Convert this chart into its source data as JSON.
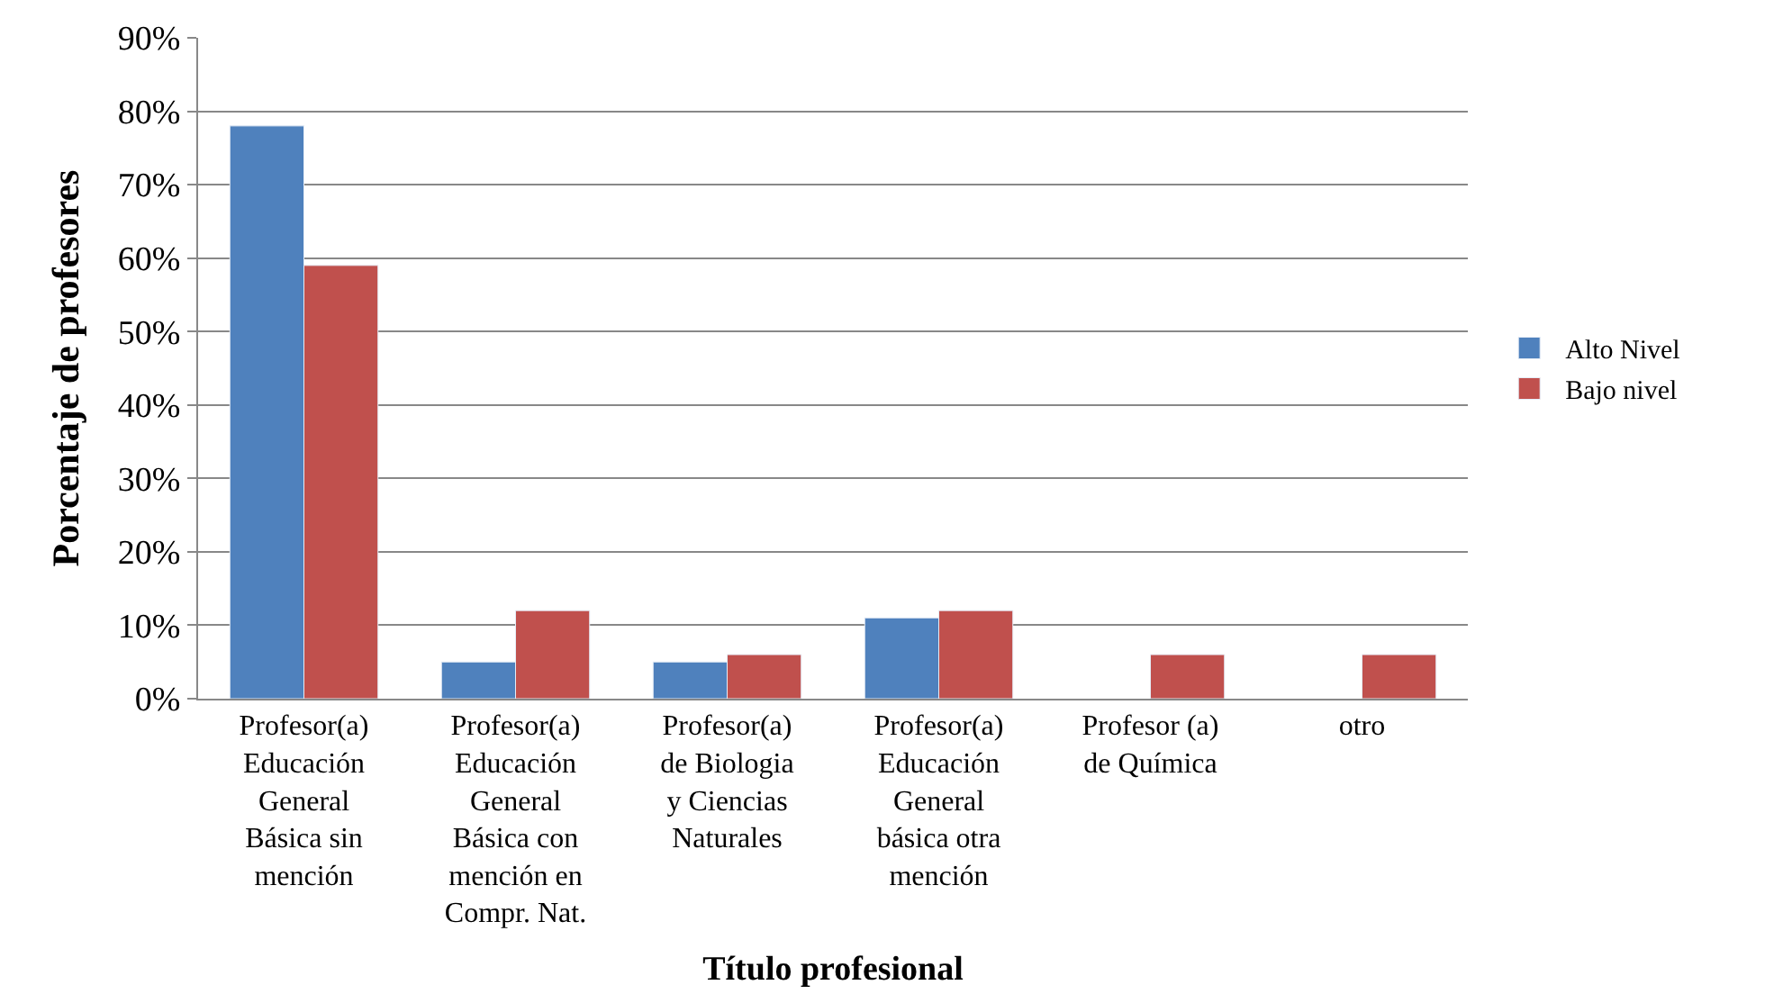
{
  "chart_data": {
    "type": "bar",
    "xlabel": "Título profesional",
    "ylabel": "Porcentaje de profesores",
    "categories": [
      "Profesor(a) Educación General Básica sin mención",
      "Profesor(a) Educación General Básica con mención en Compr. Nat.",
      "Profesor(a) de Biologia y Ciencias Naturales",
      "Profesor(a) Educación General básica otra mención",
      "Profesor (a) de Química",
      "otro"
    ],
    "series": [
      {
        "name": "Alto Nivel",
        "color": "#4f81bd",
        "values": [
          78,
          5,
          5,
          11,
          null,
          null
        ]
      },
      {
        "name": "Bajo nivel",
        "color": "#c0504d",
        "values": [
          59,
          12,
          6,
          12,
          6,
          6
        ]
      }
    ],
    "ylim": [
      0,
      90
    ],
    "yticks": [
      {
        "value": 0,
        "label": "0%"
      },
      {
        "value": 10,
        "label": "10%"
      },
      {
        "value": 20,
        "label": "20%"
      },
      {
        "value": 30,
        "label": "30%"
      },
      {
        "value": 40,
        "label": "40%"
      },
      {
        "value": 50,
        "label": "50%"
      },
      {
        "value": 60,
        "label": "60%"
      },
      {
        "value": 70,
        "label": "70%"
      },
      {
        "value": 80,
        "label": "80%"
      },
      {
        "value": 90,
        "label": "90%"
      }
    ],
    "grid": "y",
    "legend": "right"
  }
}
